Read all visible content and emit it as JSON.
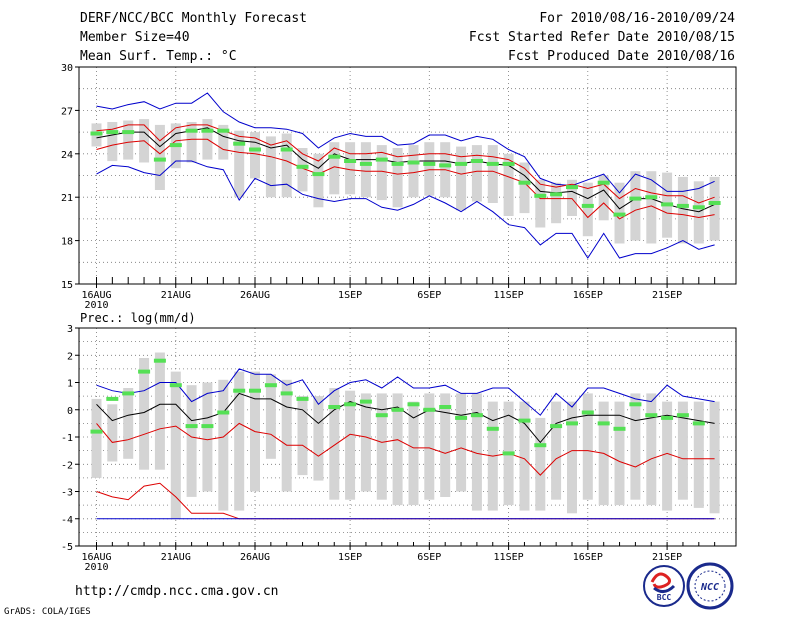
{
  "header": {
    "left": [
      "DERF/NCC/BCC Monthly Forecast",
      "Member Size=40",
      "Mean Surf. Temp.: °C"
    ],
    "right": [
      "For 2010/08/16-2010/09/24",
      "Fcst Started Refer Date 2010/08/15",
      "Fcst Produced Date 2010/08/16"
    ]
  },
  "footer": {
    "url": "http://cmdp.ncc.cma.gov.cn",
    "credit": "GrADS: COLA/IGES"
  },
  "logos": {
    "bcc": "BCC",
    "ncc": "NCC"
  },
  "colors": {
    "box": "#d4d4d4",
    "observed": "#55e055",
    "mean": "#000000",
    "spread": "#dd0000",
    "envelope": "#0000cc",
    "grid": "#777777"
  },
  "chart_data": [
    {
      "type": "line",
      "title": "Mean Surf. Temp.: °C",
      "xlabel": "",
      "ylabel": "°C",
      "ylim": [
        15,
        30
      ],
      "yticks": [
        "15",
        "18",
        "21",
        "24",
        "27",
        "30"
      ],
      "xticks": [
        {
          "day": 0,
          "label": "16AUG",
          "sub": "2010"
        },
        {
          "day": 5,
          "label": "21AUG"
        },
        {
          "day": 10,
          "label": "26AUG"
        },
        {
          "day": 16,
          "label": "1SEP"
        },
        {
          "day": 21,
          "label": "6SEP"
        },
        {
          "day": 26,
          "label": "11SEP"
        },
        {
          "day": 31,
          "label": "16SEP"
        },
        {
          "day": 36,
          "label": "21SEP"
        }
      ],
      "x_days": [
        0,
        1,
        2,
        3,
        4,
        5,
        6,
        7,
        8,
        9,
        10,
        11,
        12,
        13,
        14,
        15,
        16,
        17,
        18,
        19,
        20,
        21,
        22,
        23,
        24,
        25,
        26,
        27,
        28,
        29,
        30,
        31,
        32,
        33,
        34,
        35,
        36,
        37,
        38,
        39
      ],
      "series": [
        {
          "name": "Max",
          "values": [
            27.3,
            27.1,
            27.4,
            27.6,
            27.1,
            27.5,
            27.5,
            28.2,
            26.9,
            26.2,
            25.8,
            25.8,
            25.7,
            25.4,
            24.4,
            25.1,
            25.4,
            25.2,
            25.2,
            24.6,
            24.7,
            25.3,
            25.3,
            24.9,
            25.2,
            25.0,
            24.3,
            23.8,
            22.3,
            21.9,
            21.8,
            22.2,
            22.6,
            21.3,
            22.6,
            22.2,
            21.4,
            21.4,
            21.6,
            22.1
          ]
        },
        {
          "name": "Upper",
          "values": [
            25.6,
            25.7,
            26.0,
            26.0,
            24.9,
            25.8,
            26.0,
            26.0,
            25.6,
            25.2,
            25.1,
            24.6,
            24.9,
            24.0,
            23.5,
            24.4,
            24.0,
            24.0,
            24.1,
            23.8,
            23.9,
            24.0,
            24.0,
            23.8,
            23.9,
            23.8,
            23.6,
            23.0,
            21.9,
            21.7,
            21.9,
            21.6,
            21.9,
            20.9,
            21.6,
            21.3,
            21.1,
            21.1,
            20.6,
            21.0
          ]
        },
        {
          "name": "Mean",
          "values": [
            25.1,
            25.3,
            25.5,
            25.5,
            24.5,
            25.4,
            25.6,
            25.8,
            25.2,
            24.9,
            24.8,
            24.4,
            24.6,
            23.6,
            23.0,
            24.0,
            23.6,
            23.6,
            23.6,
            23.4,
            23.5,
            23.5,
            23.5,
            23.3,
            23.5,
            23.3,
            23.2,
            22.5,
            21.4,
            21.3,
            21.4,
            20.9,
            21.5,
            20.2,
            20.9,
            20.9,
            20.5,
            20.2,
            20.0,
            20.5
          ]
        },
        {
          "name": "Lower",
          "values": [
            24.3,
            24.6,
            24.8,
            24.9,
            24.0,
            24.9,
            25.0,
            25.0,
            24.3,
            24.1,
            24.0,
            23.8,
            23.5,
            23.0,
            22.6,
            23.1,
            22.9,
            22.8,
            22.8,
            22.6,
            22.7,
            22.9,
            22.9,
            22.6,
            22.8,
            22.8,
            22.4,
            22.0,
            20.9,
            20.9,
            20.9,
            19.6,
            20.6,
            19.5,
            20.1,
            20.4,
            19.9,
            19.8,
            19.6,
            19.8
          ]
        },
        {
          "name": "Min",
          "values": [
            22.6,
            23.2,
            23.1,
            22.7,
            22.5,
            23.5,
            23.5,
            23.1,
            22.9,
            20.8,
            22.3,
            21.8,
            21.9,
            21.2,
            20.9,
            20.7,
            20.9,
            20.9,
            20.3,
            20.1,
            20.5,
            21.1,
            20.6,
            20.0,
            20.7,
            20.0,
            19.1,
            18.9,
            17.7,
            18.5,
            18.5,
            16.8,
            18.5,
            16.8,
            17.1,
            17.1,
            17.5,
            18.0,
            17.4,
            17.7
          ]
        },
        {
          "name": "Observed",
          "values": [
            25.4,
            25.5,
            25.5,
            null,
            23.6,
            24.6,
            25.6,
            25.6,
            25.6,
            24.7,
            24.3,
            null,
            24.3,
            23.1,
            22.6,
            23.8,
            23.5,
            23.3,
            23.6,
            23.3,
            23.4,
            23.3,
            23.2,
            23.3,
            23.5,
            23.3,
            23.3,
            22.0,
            21.1,
            21.2,
            21.7,
            20.4,
            22.0,
            19.8,
            20.9,
            21.0,
            20.5,
            20.4,
            20.3,
            20.6
          ]
        }
      ],
      "box_top": [
        26.1,
        26.2,
        26.3,
        26.4,
        26.0,
        26.1,
        26.2,
        26.4,
        26.0,
        25.6,
        25.5,
        25.2,
        25.4,
        24.4,
        24.0,
        24.8,
        24.8,
        24.8,
        24.6,
        24.4,
        24.6,
        24.8,
        24.8,
        24.5,
        24.6,
        24.6,
        24.0,
        23.4,
        22.2,
        22.0,
        22.2,
        22.0,
        22.5,
        22.0,
        22.8,
        22.8,
        22.7,
        22.4,
        22.1,
        22.4
      ],
      "box_bottom": [
        24.5,
        23.5,
        23.6,
        23.4,
        21.5,
        23.0,
        23.4,
        23.6,
        23.6,
        21.0,
        22.3,
        21.0,
        21.0,
        21.4,
        20.3,
        21.2,
        21.2,
        21.0,
        20.8,
        20.3,
        21.0,
        21.1,
        21.0,
        20.1,
        20.7,
        20.6,
        19.7,
        19.9,
        18.9,
        19.2,
        19.7,
        18.3,
        19.4,
        17.8,
        18.0,
        17.8,
        18.2,
        17.8,
        17.8,
        18.0
      ]
    },
    {
      "type": "line",
      "title": "Prec.: log(mm/d)",
      "xlabel": "",
      "ylabel": "log(mm/d)",
      "ylim": [
        -5,
        3
      ],
      "yticks": [
        "-5",
        "-4",
        "-3",
        "-2",
        "-1",
        "0",
        "1",
        "2",
        "3"
      ],
      "xticks": [
        {
          "day": 0,
          "label": "16AUG",
          "sub": "2010"
        },
        {
          "day": 5,
          "label": "21AUG"
        },
        {
          "day": 10,
          "label": "26AUG"
        },
        {
          "day": 16,
          "label": "1SEP"
        },
        {
          "day": 21,
          "label": "6SEP"
        },
        {
          "day": 26,
          "label": "11SEP"
        },
        {
          "day": 31,
          "label": "16SEP"
        },
        {
          "day": 36,
          "label": "21SEP"
        }
      ],
      "x_days": [
        0,
        1,
        2,
        3,
        4,
        5,
        6,
        7,
        8,
        9,
        10,
        11,
        12,
        13,
        14,
        15,
        16,
        17,
        18,
        19,
        20,
        21,
        22,
        23,
        24,
        25,
        26,
        27,
        28,
        29,
        30,
        31,
        32,
        33,
        34,
        35,
        36,
        37,
        38,
        39
      ],
      "series": [
        {
          "name": "Max",
          "values": [
            0.9,
            0.7,
            0.6,
            0.7,
            1.0,
            1.0,
            0.3,
            0.6,
            0.7,
            1.5,
            1.3,
            1.3,
            0.9,
            1.1,
            0.2,
            0.7,
            1.0,
            1.1,
            0.8,
            1.2,
            0.8,
            0.8,
            0.9,
            0.6,
            0.6,
            0.8,
            0.8,
            0.3,
            -0.2,
            0.6,
            0.1,
            0.8,
            0.8,
            0.6,
            0.4,
            0.3,
            0.9,
            0.5,
            0.4,
            0.3
          ]
        },
        {
          "name": "Mean",
          "values": [
            0.2,
            -0.4,
            -0.2,
            -0.1,
            0.2,
            0.2,
            -0.4,
            -0.3,
            -0.1,
            0.6,
            0.4,
            0.4,
            0.1,
            0.0,
            -0.5,
            0.0,
            0.3,
            0.1,
            0.0,
            0.1,
            -0.3,
            0.0,
            -0.1,
            -0.2,
            -0.1,
            -0.4,
            -0.2,
            -0.5,
            -1.2,
            -0.5,
            -0.3,
            -0.2,
            -0.2,
            -0.2,
            -0.4,
            -0.3,
            -0.2,
            -0.3,
            -0.4,
            -0.5
          ]
        },
        {
          "name": "Spread lower",
          "values": [
            -0.5,
            -1.2,
            -1.1,
            -0.9,
            -0.7,
            -0.6,
            -1.0,
            -1.1,
            -1.0,
            -0.5,
            -0.8,
            -0.9,
            -1.3,
            -1.3,
            -1.7,
            -1.3,
            -0.9,
            -1.0,
            -1.2,
            -1.1,
            -1.4,
            -1.4,
            -1.6,
            -1.4,
            -1.6,
            -1.7,
            -1.6,
            -1.8,
            -2.4,
            -1.8,
            -1.5,
            -1.5,
            -1.6,
            -1.9,
            -2.1,
            -1.8,
            -1.6,
            -1.8,
            -1.8,
            -1.8
          ]
        },
        {
          "name": "Lower",
          "values": [
            -3.0,
            -3.2,
            -3.3,
            -2.8,
            -2.7,
            -3.2,
            -3.8,
            -3.8,
            -3.8,
            -4.0,
            -4.0,
            -4.0,
            -4.0,
            -4.0,
            -4.0,
            -4.0,
            -4.0,
            -4.0,
            -4.0,
            -4.0,
            -4.0,
            -4.0,
            -4.0,
            -4.0,
            -4.0,
            -4.0,
            -4.0,
            -4.0,
            -4.0,
            -4.0,
            -4.0,
            -4.0,
            -4.0,
            -4.0,
            -4.0,
            -4.0,
            -4.0,
            -4.0,
            -4.0,
            -4.0
          ]
        },
        {
          "name": "Min",
          "values": [
            -4.0,
            -4.0,
            -4.0,
            -4.0,
            -4.0,
            -4.0,
            -4.0,
            -4.0,
            -4.0,
            -4.0,
            -4.0,
            -4.0,
            -4.0,
            -4.0,
            -4.0,
            -4.0,
            -4.0,
            -4.0,
            -4.0,
            -4.0,
            -4.0,
            -4.0,
            -4.0,
            -4.0,
            -4.0,
            -4.0,
            -4.0,
            -4.0,
            -4.0,
            -4.0,
            -4.0,
            -4.0,
            -4.0,
            -4.0,
            -4.0,
            -4.0,
            -4.0,
            -4.0,
            -4.0,
            -4.0
          ]
        },
        {
          "name": "Observed",
          "values": [
            -0.8,
            0.4,
            0.6,
            1.4,
            1.8,
            0.9,
            -0.6,
            -0.6,
            -0.1,
            0.7,
            0.7,
            0.9,
            0.6,
            0.4,
            null,
            0.1,
            0.2,
            0.3,
            -0.2,
            0.0,
            0.2,
            0.0,
            0.1,
            -0.3,
            -0.2,
            -0.7,
            -1.6,
            -0.4,
            -1.3,
            -0.6,
            -0.5,
            -0.1,
            -0.5,
            -0.7,
            0.2,
            -0.2,
            -0.3,
            -0.2,
            -0.5,
            null
          ]
        }
      ],
      "box_top": [
        0.4,
        0.2,
        0.8,
        1.9,
        2.1,
        1.4,
        0.9,
        1.0,
        1.1,
        1.4,
        1.4,
        1.3,
        1.1,
        0.5,
        0.5,
        0.8,
        0.7,
        0.6,
        0.6,
        0.6,
        0.3,
        0.6,
        0.6,
        0.6,
        0.6,
        0.3,
        0.3,
        0.3,
        -0.3,
        0.3,
        0.3,
        0.6,
        0.3,
        0.3,
        0.6,
        0.6,
        0.3,
        0.3,
        0.3,
        0.3
      ],
      "box_bottom": [
        -2.5,
        -1.9,
        -1.8,
        -2.2,
        -2.2,
        -4.0,
        -3.2,
        -3.0,
        -3.7,
        -3.7,
        -3.0,
        -1.8,
        -3.0,
        -2.4,
        -2.6,
        -3.3,
        -3.3,
        -3.0,
        -3.3,
        -3.5,
        -3.5,
        -3.3,
        -3.2,
        -3.0,
        -3.7,
        -3.7,
        -3.5,
        -3.7,
        -3.7,
        -3.3,
        -3.8,
        -3.3,
        -3.5,
        -3.5,
        -3.3,
        -3.5,
        -3.7,
        -3.3,
        -3.6,
        -3.8
      ]
    }
  ]
}
